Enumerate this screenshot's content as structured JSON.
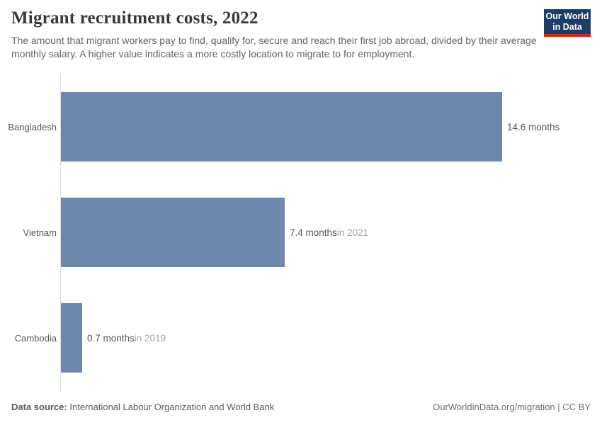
{
  "header": {
    "title": "Migrant recruitment costs, 2022",
    "subtitle": "The amount that migrant workers pay to find, qualify for, secure and reach their first job abroad, divided by their average monthly salary. A higher value indicates a more costly location to migrate to for employment.",
    "logo": {
      "line1": "Our World",
      "line2": "in Data"
    }
  },
  "chart_data": {
    "type": "bar",
    "orientation": "horizontal",
    "title": "Migrant recruitment costs, 2022",
    "categories": [
      "Bangladesh",
      "Vietnam",
      "Cambodia"
    ],
    "values": [
      14.6,
      7.4,
      0.7
    ],
    "unit": "months",
    "value_labels": [
      "14.6 months",
      "7.4 months",
      "0.7 months"
    ],
    "value_suffixes": [
      "",
      "in 2021",
      "in 2019"
    ],
    "xlim": [
      0,
      14.6
    ],
    "grid": false,
    "legend": "none",
    "bar_color": "#6e87ac",
    "axis_color": "#dcdcdc"
  },
  "footer": {
    "source_label": "Data source:",
    "source_text": " International Labour Organization and World Bank",
    "right_text": "OurWorldinData.org/migration | CC BY"
  }
}
